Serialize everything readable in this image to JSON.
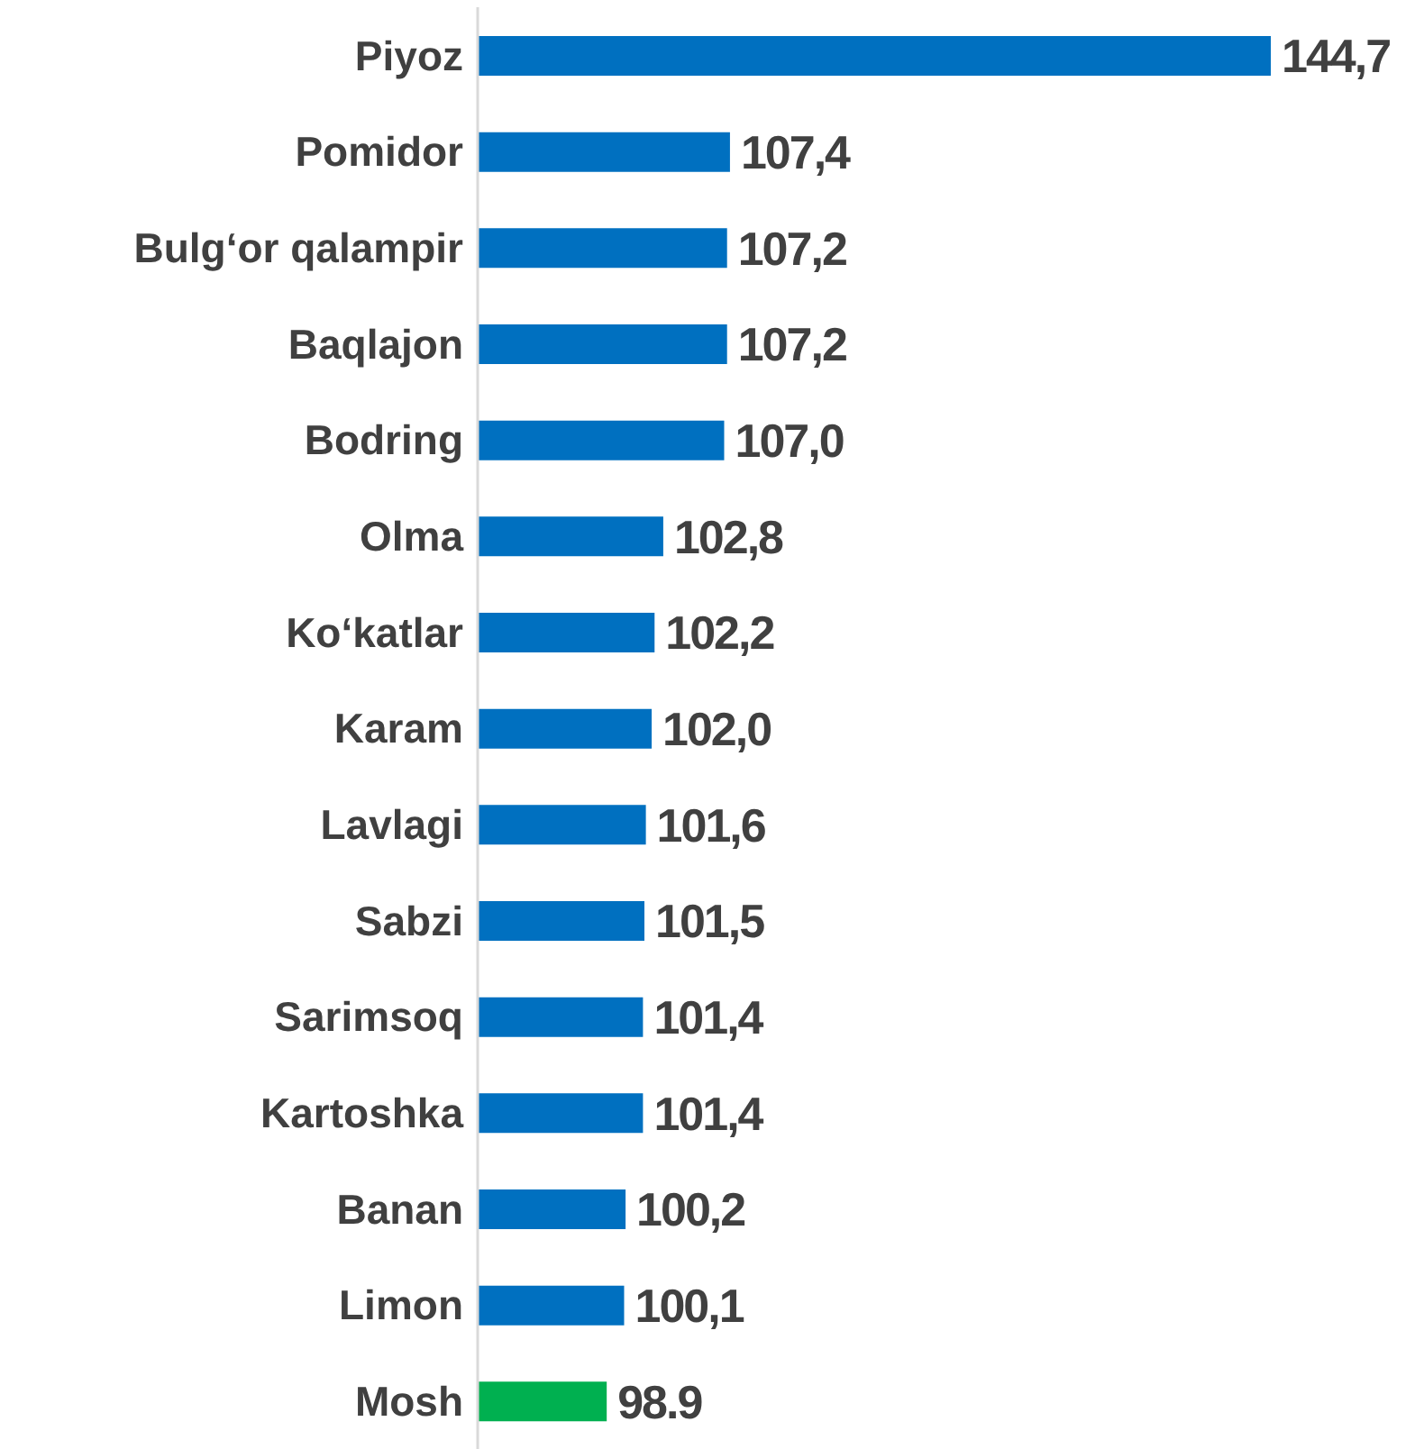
{
  "chart_data": {
    "type": "bar",
    "orientation": "horizontal",
    "categories": [
      "Piyoz",
      "Pomidor",
      "Bulg‘or qalampir",
      "Baqlajon",
      "Bodring",
      "Olma",
      "Ko‘katlar",
      "Karam",
      "Lavlagi",
      "Sabzi",
      "Sarimsoq",
      "Kartoshka",
      "Banan",
      "Limon",
      "Mosh"
    ],
    "values": [
      144.7,
      107.4,
      107.2,
      107.2,
      107.0,
      102.8,
      102.2,
      102.0,
      101.6,
      101.5,
      101.4,
      101.4,
      100.2,
      100.1,
      98.9
    ],
    "colors": [
      "#0070c0",
      "#0070c0",
      "#0070c0",
      "#0070c0",
      "#0070c0",
      "#0070c0",
      "#0070c0",
      "#0070c0",
      "#0070c0",
      "#0070c0",
      "#0070c0",
      "#0070c0",
      "#0070c0",
      "#0070c0",
      "#00b050"
    ],
    "value_labels": [
      "144,7",
      "107,4",
      "107,2",
      "107,2",
      "107,0",
      "102,8",
      "102,2",
      "102,0",
      "101,6",
      "101,5",
      "101,4",
      "101,4",
      "100,2",
      "100,1",
      "98.9"
    ],
    "xlim": [
      90,
      144.7
    ],
    "tick_labels": "y",
    "grid": false,
    "legend": false
  }
}
